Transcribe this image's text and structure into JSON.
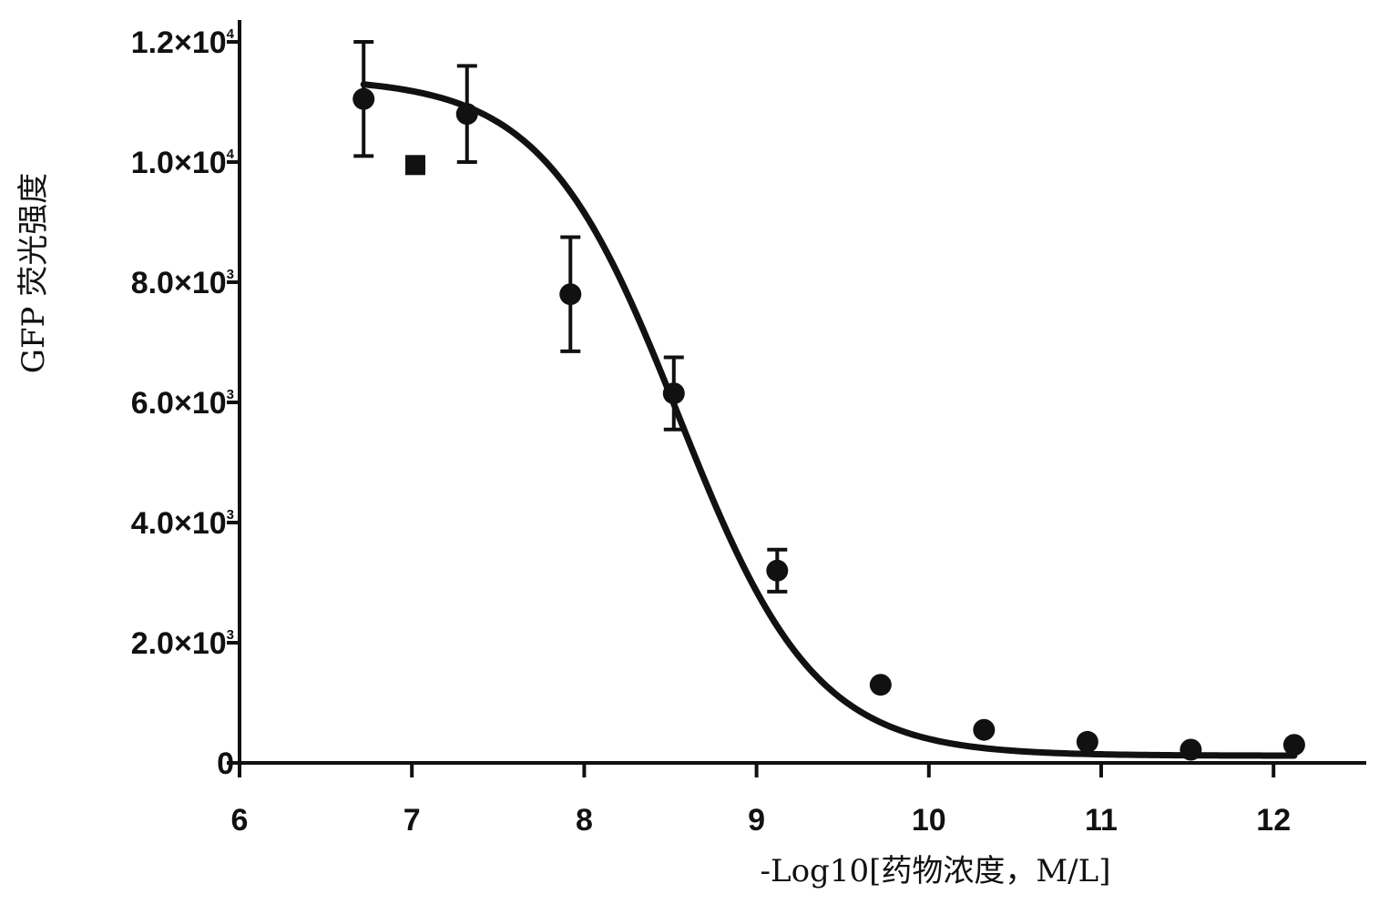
{
  "chart_data": {
    "type": "scatter",
    "xlabel": "-Log10[药物浓度，M/L]",
    "ylabel": "GFP 荧光强度",
    "xlim": [
      6,
      12.5
    ],
    "ylim": [
      0,
      12500
    ],
    "x_ticks": [
      6,
      7,
      8,
      9,
      10,
      11,
      12
    ],
    "x_tick_labels": [
      "6",
      "7",
      "8",
      "9",
      "10",
      "11",
      "12"
    ],
    "y_ticks": [
      0,
      2000,
      4000,
      6000,
      8000,
      10000,
      12000
    ],
    "y_tick_labels": [
      {
        "mantissa": "0",
        "exponent": ""
      },
      {
        "mantissa": "2.0×10",
        "exponent": "3"
      },
      {
        "mantissa": "4.0×10",
        "exponent": "3"
      },
      {
        "mantissa": "6.0×10",
        "exponent": "3"
      },
      {
        "mantissa": "8.0×10",
        "exponent": "3"
      },
      {
        "mantissa": "1.0×10",
        "exponent": "4"
      },
      {
        "mantissa": "1.2×10",
        "exponent": "4"
      }
    ],
    "grid": false,
    "points": [
      {
        "x": 6.72,
        "y": 11050,
        "err": 950,
        "marker": "circle"
      },
      {
        "x": 7.02,
        "y": 9950,
        "err": 0,
        "marker": "square"
      },
      {
        "x": 7.32,
        "y": 10800,
        "err": 800,
        "marker": "circle"
      },
      {
        "x": 7.92,
        "y": 7800,
        "err": 950,
        "marker": "circle"
      },
      {
        "x": 8.52,
        "y": 6150,
        "err": 600,
        "marker": "circle"
      },
      {
        "x": 9.12,
        "y": 3200,
        "err": 350,
        "marker": "circle"
      },
      {
        "x": 9.72,
        "y": 1300,
        "err": 0,
        "marker": "circle"
      },
      {
        "x": 10.32,
        "y": 550,
        "err": 0,
        "marker": "circle"
      },
      {
        "x": 10.92,
        "y": 350,
        "err": 0,
        "marker": "circle"
      },
      {
        "x": 11.52,
        "y": 220,
        "err": 0,
        "marker": "circle"
      },
      {
        "x": 12.12,
        "y": 300,
        "err": 0,
        "marker": "circle"
      }
    ],
    "fit_curve": {
      "model": "four-parameter logistic",
      "top": 11400,
      "bottom": 120,
      "log_ic50": 8.55,
      "hill_slope": 1.1,
      "x_range": [
        6.72,
        12.12
      ]
    },
    "colors": {
      "ink": "#111111",
      "background": "#ffffff"
    }
  }
}
